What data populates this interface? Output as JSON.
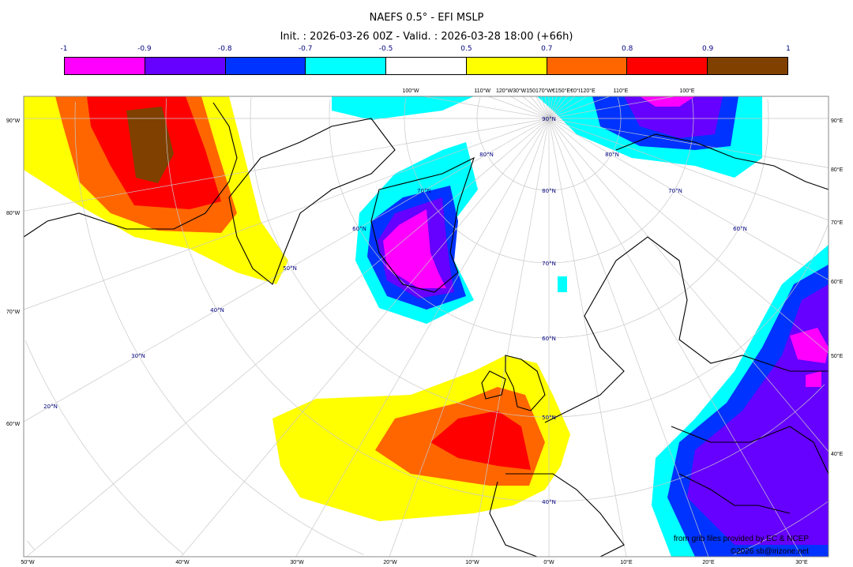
{
  "title": "NAEFS 0.5° - EFI MSLP",
  "subtitle": "Init. : 2026-03-26 00Z - Valid. : 2026-03-28 18:00 (+66h)",
  "colorbar": {
    "labels": [
      "-1",
      "-0.9",
      "-0.8",
      "-0.7",
      "-0.5",
      "0.5",
      "0.7",
      "0.8",
      "0.9",
      "1"
    ],
    "colors": [
      "#ff00ff",
      "#6600ff",
      "#0033ff",
      "#00ffff",
      "#ffffff",
      "#ffff00",
      "#ff6600",
      "#ff0000",
      "#7f4000"
    ]
  },
  "axes": {
    "left": [
      "90°W",
      "80°W",
      "70°W",
      "60°W"
    ],
    "bottom": [
      "50°W",
      "40°W",
      "30°W",
      "20°W",
      "10°W",
      "0°W",
      "10°E",
      "20°E",
      "30°E"
    ],
    "right": [
      "90°E",
      "80°E",
      "70°E",
      "60°E",
      "50°E",
      "40°E"
    ],
    "top": [
      "100°W",
      "110°W",
      "120°W30°W150170°W€150°E€0°I120°E",
      "110°E",
      "100°E"
    ]
  },
  "lat_labels": [
    "90°N",
    "80°N",
    "70°N",
    "60°N",
    "50°N",
    "40°N",
    "50°N",
    "40°N",
    "30°N",
    "20°N",
    "60°N",
    "70°N",
    "80°N",
    "60°N",
    "70°N",
    "80°N"
  ],
  "credits": [
    "from grib files provided by EC & NCEP",
    "©2026 sb@irizone.net"
  ]
}
